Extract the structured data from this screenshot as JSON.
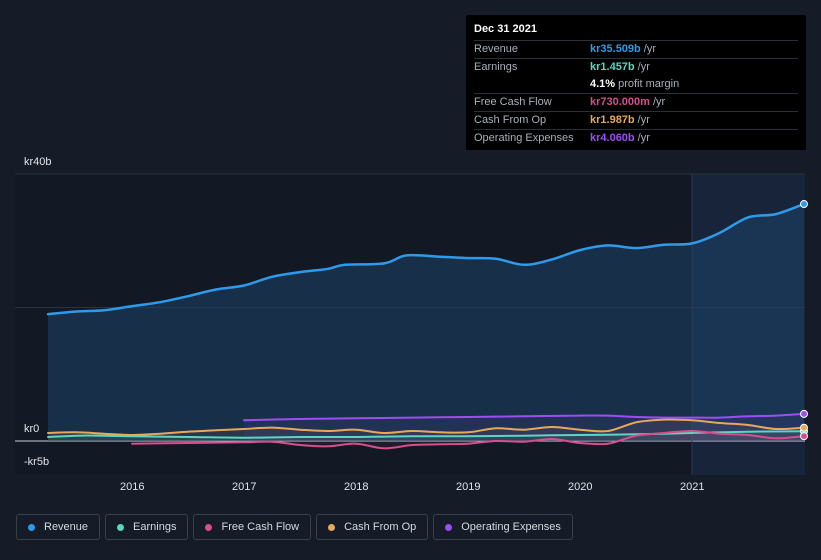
{
  "tooltip": {
    "date": "Dec 31 2021",
    "rows": [
      {
        "label": "Revenue",
        "value": "kr35.509b",
        "unit": "/yr",
        "color": "#2e9bea"
      },
      {
        "label": "Earnings",
        "value": "kr1.457b",
        "unit": "/yr",
        "color": "#5dd6c0"
      },
      {
        "label": "",
        "value": "4.1%",
        "unit": "profit margin",
        "color": "#ffffff"
      },
      {
        "label": "Free Cash Flow",
        "value": "kr730.000m",
        "unit": "/yr",
        "color": "#d64f8c"
      },
      {
        "label": "Cash From Op",
        "value": "kr1.987b",
        "unit": "/yr",
        "color": "#e8a85a"
      },
      {
        "label": "Operating Expenses",
        "value": "kr4.060b",
        "unit": "/yr",
        "color": "#9b4ff0"
      }
    ]
  },
  "legend": [
    {
      "label": "Revenue",
      "color": "#2e9bea"
    },
    {
      "label": "Earnings",
      "color": "#5dd6c0"
    },
    {
      "label": "Free Cash Flow",
      "color": "#d64f8c"
    },
    {
      "label": "Cash From Op",
      "color": "#e8a85a"
    },
    {
      "label": "Operating Expenses",
      "color": "#9b4ff0"
    }
  ],
  "chart_data": {
    "type": "area",
    "title": "",
    "xlabel": "",
    "ylabel": "",
    "ylim": [
      -5,
      40
    ],
    "xlim": [
      2015.25,
      2022.0
    ],
    "y_tick_labels": [
      {
        "value": 40,
        "label": "kr40b"
      },
      {
        "value": 0,
        "label": "kr0"
      },
      {
        "value": -5,
        "label": "-kr5b"
      }
    ],
    "x_tick_labels": [
      "2016",
      "2017",
      "2018",
      "2019",
      "2020",
      "2021"
    ],
    "highlight_from": 2021.0,
    "series": [
      {
        "name": "Revenue",
        "color": "#2e9bea",
        "filled": true,
        "points": [
          [
            2015.25,
            19.0
          ],
          [
            2015.5,
            19.4
          ],
          [
            2015.75,
            19.6
          ],
          [
            2016.0,
            20.2
          ],
          [
            2016.25,
            20.8
          ],
          [
            2016.5,
            21.7
          ],
          [
            2016.75,
            22.7
          ],
          [
            2017.0,
            23.3
          ],
          [
            2017.25,
            24.6
          ],
          [
            2017.5,
            25.3
          ],
          [
            2017.75,
            25.8
          ],
          [
            2017.9,
            26.4
          ],
          [
            2018.25,
            26.6
          ],
          [
            2018.45,
            27.8
          ],
          [
            2018.75,
            27.6
          ],
          [
            2019.0,
            27.4
          ],
          [
            2019.25,
            27.3
          ],
          [
            2019.5,
            26.4
          ],
          [
            2019.75,
            27.2
          ],
          [
            2020.0,
            28.6
          ],
          [
            2020.25,
            29.3
          ],
          [
            2020.5,
            28.9
          ],
          [
            2020.75,
            29.4
          ],
          [
            2021.0,
            29.6
          ],
          [
            2021.25,
            31.2
          ],
          [
            2021.5,
            33.5
          ],
          [
            2021.75,
            34.0
          ],
          [
            2022.0,
            35.5
          ]
        ]
      },
      {
        "name": "Earnings",
        "color": "#5dd6c0",
        "filled": false,
        "points": [
          [
            2015.25,
            0.6
          ],
          [
            2015.5,
            0.8
          ],
          [
            2015.75,
            0.8
          ],
          [
            2016.0,
            0.7
          ],
          [
            2016.5,
            0.6
          ],
          [
            2017.0,
            0.5
          ],
          [
            2017.5,
            0.6
          ],
          [
            2018.0,
            0.6
          ],
          [
            2018.5,
            0.7
          ],
          [
            2019.0,
            0.7
          ],
          [
            2019.5,
            0.8
          ],
          [
            2020.0,
            0.9
          ],
          [
            2020.5,
            1.0
          ],
          [
            2021.0,
            1.2
          ],
          [
            2021.5,
            1.4
          ],
          [
            2022.0,
            1.457
          ]
        ]
      },
      {
        "name": "Free Cash Flow",
        "color": "#d64f8c",
        "filled": false,
        "points": [
          [
            2016.0,
            -0.4
          ],
          [
            2016.5,
            -0.3
          ],
          [
            2017.0,
            -0.2
          ],
          [
            2017.25,
            -0.1
          ],
          [
            2017.5,
            -0.6
          ],
          [
            2017.75,
            -0.8
          ],
          [
            2018.0,
            -0.4
          ],
          [
            2018.25,
            -1.1
          ],
          [
            2018.5,
            -0.6
          ],
          [
            2018.75,
            -0.5
          ],
          [
            2019.0,
            -0.4
          ],
          [
            2019.25,
            0.0
          ],
          [
            2019.5,
            -0.1
          ],
          [
            2019.75,
            0.3
          ],
          [
            2020.0,
            -0.3
          ],
          [
            2020.25,
            -0.4
          ],
          [
            2020.5,
            0.8
          ],
          [
            2020.75,
            1.2
          ],
          [
            2021.0,
            1.5
          ],
          [
            2021.25,
            1.1
          ],
          [
            2021.5,
            0.9
          ],
          [
            2021.75,
            0.4
          ],
          [
            2022.0,
            0.73
          ]
        ]
      },
      {
        "name": "Cash From Op",
        "color": "#e8a85a",
        "filled": false,
        "points": [
          [
            2015.25,
            1.2
          ],
          [
            2015.5,
            1.3
          ],
          [
            2015.75,
            1.1
          ],
          [
            2016.0,
            0.9
          ],
          [
            2016.25,
            1.1
          ],
          [
            2016.5,
            1.4
          ],
          [
            2016.75,
            1.6
          ],
          [
            2017.0,
            1.8
          ],
          [
            2017.25,
            2.0
          ],
          [
            2017.5,
            1.7
          ],
          [
            2017.75,
            1.5
          ],
          [
            2018.0,
            1.7
          ],
          [
            2018.25,
            1.2
          ],
          [
            2018.5,
            1.5
          ],
          [
            2018.75,
            1.3
          ],
          [
            2019.0,
            1.3
          ],
          [
            2019.25,
            1.9
          ],
          [
            2019.5,
            1.7
          ],
          [
            2019.75,
            2.1
          ],
          [
            2020.0,
            1.7
          ],
          [
            2020.25,
            1.5
          ],
          [
            2020.5,
            2.8
          ],
          [
            2020.75,
            3.2
          ],
          [
            2021.0,
            3.1
          ],
          [
            2021.25,
            2.7
          ],
          [
            2021.5,
            2.4
          ],
          [
            2021.75,
            1.8
          ],
          [
            2022.0,
            1.987
          ]
        ]
      },
      {
        "name": "Operating Expenses",
        "color": "#9b4ff0",
        "filled": false,
        "points": [
          [
            2017.0,
            3.1
          ],
          [
            2017.5,
            3.3
          ],
          [
            2018.0,
            3.4
          ],
          [
            2018.5,
            3.5
          ],
          [
            2019.0,
            3.6
          ],
          [
            2019.5,
            3.7
          ],
          [
            2020.0,
            3.8
          ],
          [
            2020.25,
            3.8
          ],
          [
            2020.5,
            3.6
          ],
          [
            2020.75,
            3.5
          ],
          [
            2021.0,
            3.5
          ],
          [
            2021.25,
            3.5
          ],
          [
            2021.5,
            3.7
          ],
          [
            2021.75,
            3.8
          ],
          [
            2022.0,
            4.06
          ]
        ]
      }
    ]
  }
}
